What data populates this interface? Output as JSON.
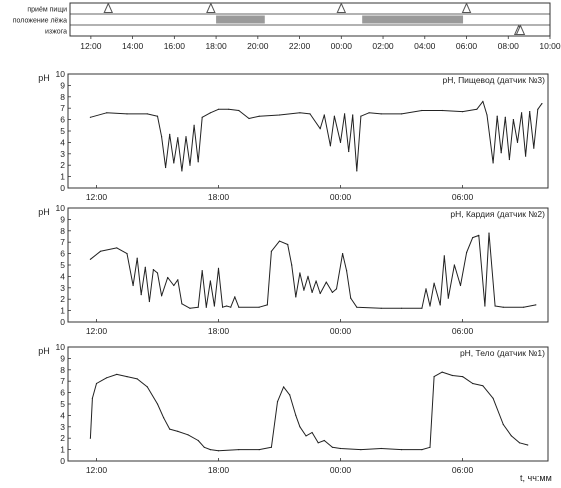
{
  "timeline": {
    "rows": [
      {
        "label": "приём пищи",
        "markers": [
          "12:50",
          "17:45",
          "00:00",
          "06:00"
        ]
      },
      {
        "label": "положение лёжа",
        "periods": [
          [
            "18:00",
            "20:20"
          ],
          [
            "01:00",
            "05:50"
          ]
        ]
      },
      {
        "label": "изжога",
        "markers": [
          "08:30",
          "08:35"
        ]
      }
    ],
    "x_ticks": [
      "12:00",
      "14:00",
      "16:00",
      "18:00",
      "20:00",
      "22:00",
      "00:00",
      "02:00",
      "04:00",
      "06:00",
      "08:00",
      "10:00"
    ],
    "colors": {
      "bar": "#9a9a9a",
      "marker": "#555555",
      "line": "#333333"
    }
  },
  "chart_data": [
    {
      "type": "line",
      "title": "pH, Пищевод (датчик №3)",
      "ylabel": "pH",
      "ylim": [
        0,
        10
      ],
      "y_ticks": [
        "0",
        "1",
        "2",
        "3",
        "4",
        "5",
        "6",
        "7",
        "8",
        "9",
        "10"
      ],
      "x_ticks": [
        "12:00",
        "18:00",
        "00:00",
        "06:00"
      ],
      "x_tick_hours": [
        0,
        6,
        12,
        18
      ],
      "xlim_hours": [
        -1.4,
        22.2
      ],
      "series": [
        {
          "values": [
            [
              -0.3,
              6.2
            ],
            [
              0.5,
              6.6
            ],
            [
              1.5,
              6.5
            ],
            [
              2.5,
              6.5
            ],
            [
              3,
              6.3
            ],
            [
              3.2,
              4.5
            ],
            [
              3.4,
              1.8
            ],
            [
              3.6,
              4.7
            ],
            [
              3.8,
              2.2
            ],
            [
              4,
              4.4
            ],
            [
              4.2,
              1.5
            ],
            [
              4.4,
              4.5
            ],
            [
              4.6,
              2.0
            ],
            [
              4.8,
              5.5
            ],
            [
              5,
              2.3
            ],
            [
              5.2,
              6.2
            ],
            [
              5.6,
              6.6
            ],
            [
              6,
              6.9
            ],
            [
              6.5,
              6.9
            ],
            [
              7,
              6.8
            ],
            [
              7.5,
              6.1
            ],
            [
              8,
              6.3
            ],
            [
              9,
              6.4
            ],
            [
              10,
              6.6
            ],
            [
              10.5,
              6.5
            ],
            [
              11,
              5.2
            ],
            [
              11.2,
              6.4
            ],
            [
              11.5,
              3.7
            ],
            [
              11.7,
              6.3
            ],
            [
              12,
              4.0
            ],
            [
              12.2,
              6.5
            ],
            [
              12.4,
              3.2
            ],
            [
              12.6,
              6.4
            ],
            [
              12.8,
              1.5
            ],
            [
              13,
              6.3
            ],
            [
              13.4,
              6.6
            ],
            [
              14,
              6.5
            ],
            [
              15,
              6.5
            ],
            [
              16,
              6.8
            ],
            [
              17,
              6.8
            ],
            [
              18,
              6.7
            ],
            [
              18.7,
              6.9
            ],
            [
              19,
              7.6
            ],
            [
              19.2,
              6.4
            ],
            [
              19.5,
              2.2
            ],
            [
              19.7,
              6.3
            ],
            [
              19.9,
              3.1
            ],
            [
              20.1,
              6.2
            ],
            [
              20.3,
              2.5
            ],
            [
              20.5,
              6.0
            ],
            [
              20.7,
              4.0
            ],
            [
              20.9,
              6.6
            ],
            [
              21.1,
              2.8
            ],
            [
              21.3,
              6.7
            ],
            [
              21.5,
              3.5
            ],
            [
              21.7,
              6.9
            ],
            [
              21.9,
              7.4
            ]
          ],
          "color": "#222222"
        }
      ]
    },
    {
      "type": "line",
      "title": "pH, Кардия (датчик №2)",
      "ylabel": "pH",
      "ylim": [
        0,
        10
      ],
      "y_ticks": [
        "0",
        "1",
        "2",
        "3",
        "4",
        "5",
        "6",
        "7",
        "8",
        "9",
        "10"
      ],
      "x_ticks": [
        "12:00",
        "18:00",
        "00:00",
        "06:00"
      ],
      "x_tick_hours": [
        0,
        6,
        12,
        18
      ],
      "xlim_hours": [
        -1.4,
        22.2
      ],
      "series": [
        {
          "values": [
            [
              -0.3,
              5.5
            ],
            [
              0.2,
              6.2
            ],
            [
              1,
              6.5
            ],
            [
              1.5,
              6.0
            ],
            [
              1.8,
              3.2
            ],
            [
              2,
              5.6
            ],
            [
              2.2,
              2.4
            ],
            [
              2.4,
              4.8
            ],
            [
              2.6,
              1.8
            ],
            [
              2.8,
              4.6
            ],
            [
              3,
              4.3
            ],
            [
              3.2,
              2.3
            ],
            [
              3.5,
              3.9
            ],
            [
              3.8,
              3.2
            ],
            [
              4,
              3.7
            ],
            [
              4.2,
              1.6
            ],
            [
              4.6,
              1.2
            ],
            [
              5,
              1.3
            ],
            [
              5.2,
              4.5
            ],
            [
              5.4,
              1.3
            ],
            [
              5.6,
              3.6
            ],
            [
              5.8,
              1.4
            ],
            [
              6,
              4.7
            ],
            [
              6.2,
              1.3
            ],
            [
              6.4,
              1.4
            ],
            [
              6.6,
              1.3
            ],
            [
              6.8,
              2.2
            ],
            [
              7,
              1.3
            ],
            [
              8,
              1.3
            ],
            [
              8.4,
              1.5
            ],
            [
              8.6,
              6.2
            ],
            [
              9,
              7.1
            ],
            [
              9.4,
              6.8
            ],
            [
              9.6,
              5.0
            ],
            [
              9.8,
              2.2
            ],
            [
              10,
              4.3
            ],
            [
              10.2,
              2.8
            ],
            [
              10.4,
              4.0
            ],
            [
              10.6,
              2.6
            ],
            [
              10.8,
              3.6
            ],
            [
              11,
              2.5
            ],
            [
              11.3,
              3.5
            ],
            [
              11.6,
              2.6
            ],
            [
              11.8,
              2.9
            ],
            [
              12.1,
              6.0
            ],
            [
              12.3,
              4.5
            ],
            [
              12.5,
              2.1
            ],
            [
              12.8,
              1.3
            ],
            [
              14,
              1.2
            ],
            [
              15,
              1.2
            ],
            [
              16,
              1.2
            ],
            [
              16.2,
              2.9
            ],
            [
              16.4,
              1.4
            ],
            [
              16.6,
              3.4
            ],
            [
              16.9,
              1.5
            ],
            [
              17.1,
              5.8
            ],
            [
              17.3,
              2.1
            ],
            [
              17.6,
              5.0
            ],
            [
              17.9,
              3.2
            ],
            [
              18.2,
              6.1
            ],
            [
              18.5,
              7.4
            ],
            [
              18.8,
              7.6
            ],
            [
              19.1,
              1.4
            ],
            [
              19.3,
              7.8
            ],
            [
              19.6,
              1.4
            ],
            [
              20,
              1.3
            ],
            [
              21,
              1.3
            ],
            [
              21.6,
              1.5
            ]
          ],
          "color": "#222222"
        }
      ]
    },
    {
      "type": "line",
      "title": "pH, Тело (датчик №1)",
      "ylabel": "pH",
      "ylim": [
        0,
        10
      ],
      "y_ticks": [
        "0",
        "1",
        "2",
        "3",
        "4",
        "5",
        "6",
        "7",
        "8",
        "9",
        "10"
      ],
      "x_ticks": [
        "12:00",
        "18:00",
        "00:00",
        "06:00"
      ],
      "x_tick_hours": [
        0,
        6,
        12,
        18
      ],
      "xlim_hours": [
        -1.4,
        22.2
      ],
      "series": [
        {
          "values": [
            [
              -0.3,
              2.0
            ],
            [
              -0.2,
              5.5
            ],
            [
              0,
              6.8
            ],
            [
              0.5,
              7.3
            ],
            [
              1,
              7.6
            ],
            [
              1.5,
              7.4
            ],
            [
              2,
              7.2
            ],
            [
              2.5,
              6.5
            ],
            [
              3,
              5.0
            ],
            [
              3.3,
              3.8
            ],
            [
              3.6,
              2.8
            ],
            [
              4,
              2.6
            ],
            [
              4.5,
              2.3
            ],
            [
              5,
              1.8
            ],
            [
              5.3,
              1.2
            ],
            [
              5.6,
              1.0
            ],
            [
              6,
              0.9
            ],
            [
              7,
              1.0
            ],
            [
              8,
              1.0
            ],
            [
              8.6,
              1.2
            ],
            [
              8.9,
              5.2
            ],
            [
              9.2,
              6.5
            ],
            [
              9.5,
              5.8
            ],
            [
              9.8,
              4.0
            ],
            [
              10,
              3.0
            ],
            [
              10.3,
              2.2
            ],
            [
              10.6,
              2.5
            ],
            [
              10.9,
              1.6
            ],
            [
              11.2,
              1.8
            ],
            [
              11.6,
              1.2
            ],
            [
              12,
              1.1
            ],
            [
              13,
              1.0
            ],
            [
              14,
              1.1
            ],
            [
              15,
              1.0
            ],
            [
              16,
              1.0
            ],
            [
              16.4,
              1.2
            ],
            [
              16.6,
              7.4
            ],
            [
              17,
              7.8
            ],
            [
              17.5,
              7.5
            ],
            [
              18,
              7.4
            ],
            [
              18.5,
              6.8
            ],
            [
              19,
              6.6
            ],
            [
              19.5,
              5.5
            ],
            [
              20,
              3.2
            ],
            [
              20.4,
              2.2
            ],
            [
              20.8,
              1.6
            ],
            [
              21.2,
              1.4
            ]
          ],
          "color": "#222222"
        }
      ]
    }
  ],
  "x_axis_label": "t, чч:мм"
}
